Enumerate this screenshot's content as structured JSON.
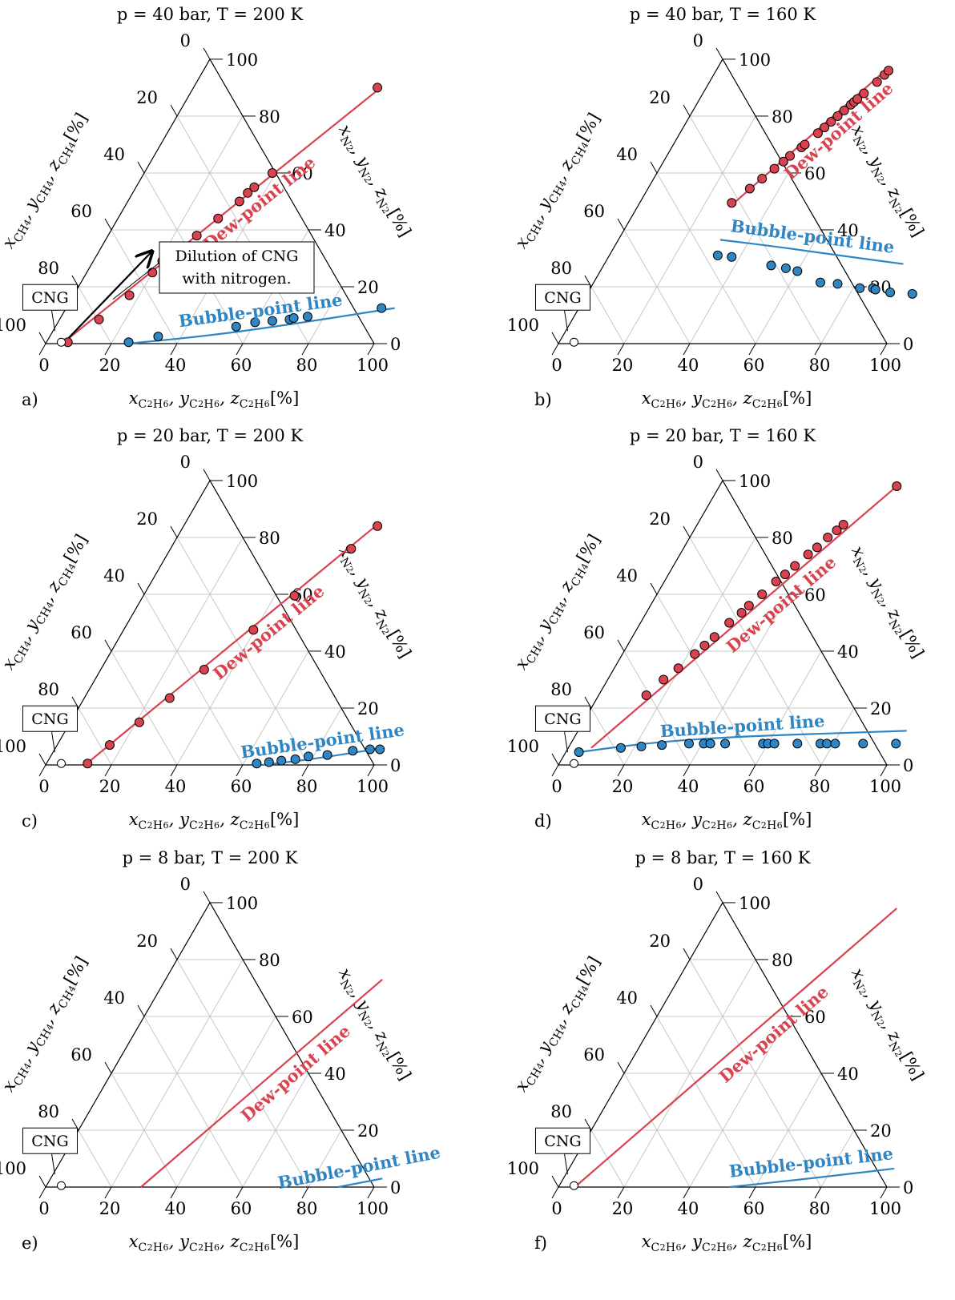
{
  "axis_labels": {
    "left": "x_CH4, y_CH4, z_CH4 [%]",
    "right": "x_N2, y_N2, z_N2 [%]",
    "bottom": "x_C2H6, y_C2H6, z_C2H6 [%]"
  },
  "ticks": [
    "0",
    "20",
    "40",
    "60",
    "80",
    "100"
  ],
  "cng_label": "CNG",
  "dew_label": "Dew-point line",
  "bubble_label": "Bubble-point line",
  "annotation_lines": [
    "Dilution of CNG",
    "with nitrogen."
  ],
  "colors": {
    "dew": "#d8434f",
    "bubble": "#2f86c3",
    "grid": "#c8c8c8"
  },
  "chart_data": [
    {
      "type": "scatter",
      "panel": "a)",
      "title": "p = 40 bar, T = 200 K",
      "cng_point": [
        4.5,
        0.5
      ],
      "dew_line": [
        [
          5,
          0
        ],
        [
          57,
          90
        ]
      ],
      "bubble_line": [
        [
          25,
          0
        ],
        [
          50,
          3
        ],
        [
          75,
          7.5
        ],
        [
          100,
          12.5
        ]
      ],
      "dew_points": [
        [
          6.5,
          0.5
        ],
        [
          12,
          8.5
        ],
        [
          17,
          17
        ],
        [
          20,
          25
        ],
        [
          21,
          29
        ],
        [
          27,
          38
        ],
        [
          30.5,
          44
        ],
        [
          34,
          50
        ],
        [
          35,
          53
        ],
        [
          36,
          55
        ],
        [
          39,
          60
        ],
        [
          56,
          90
        ]
      ],
      "bubble_points": [
        [
          25,
          0.5
        ],
        [
          33,
          2.5
        ],
        [
          55,
          6
        ],
        [
          60,
          7.5
        ],
        [
          65,
          8
        ],
        [
          70,
          8.5
        ],
        [
          71,
          9
        ],
        [
          75,
          9.5
        ],
        [
          96,
          12.5
        ]
      ],
      "annotation_arrow": [
        [
          6,
          2
        ],
        [
          16,
          32
        ]
      ]
    },
    {
      "type": "scatter",
      "panel": "b)",
      "title": "p = 40 bar, T = 160 K",
      "cng_point": [
        4.5,
        0.5
      ],
      "dew_line": [
        [
          28,
          48
        ],
        [
          52,
          97
        ]
      ],
      "bubble_line": [
        [
          31,
          36.5
        ],
        [
          50,
          34
        ],
        [
          70,
          31
        ],
        [
          91,
          28
        ]
      ],
      "dew_points": [
        [
          28,
          49.5
        ],
        [
          31,
          54.5
        ],
        [
          33,
          58
        ],
        [
          35,
          61.5
        ],
        [
          36.5,
          64
        ],
        [
          37.5,
          66
        ],
        [
          39.5,
          69
        ],
        [
          40,
          70
        ],
        [
          42,
          74
        ],
        [
          43,
          76
        ],
        [
          44,
          78
        ],
        [
          45,
          80
        ],
        [
          46,
          82
        ],
        [
          47,
          84
        ],
        [
          47.5,
          85
        ],
        [
          48,
          86
        ],
        [
          49,
          88
        ],
        [
          51,
          92
        ],
        [
          52,
          94.5
        ],
        [
          52.5,
          96
        ]
      ],
      "bubble_points": [
        [
          33,
          31
        ],
        [
          37.5,
          30.5
        ],
        [
          51,
          27.5
        ],
        [
          56,
          26.5
        ],
        [
          60,
          25.5
        ],
        [
          69,
          21.5
        ],
        [
          74.5,
          21
        ],
        [
          82,
          19.5
        ],
        [
          86,
          19.5
        ],
        [
          87,
          19
        ],
        [
          92,
          18
        ],
        [
          99,
          17.5
        ]
      ],
      "annotation_arrow": []
    },
    {
      "type": "scatter",
      "panel": "c)",
      "title": "p = 20 bar, T = 200 K",
      "cng_point": [
        4.5,
        0.5
      ],
      "dew_line": [
        [
          12,
          0
        ],
        [
          59,
          85
        ]
      ],
      "bubble_line": [
        [
          66,
          0
        ],
        [
          80,
          2
        ],
        [
          100,
          6
        ]
      ],
      "dew_points": [
        [
          12.5,
          0.5
        ],
        [
          16,
          7
        ],
        [
          21,
          15
        ],
        [
          26,
          23.5
        ],
        [
          31.5,
          33.5
        ],
        [
          39.5,
          47.5
        ],
        [
          46,
          59.5
        ],
        [
          55,
          76
        ],
        [
          59,
          84
        ]
      ],
      "bubble_points": [
        [
          64,
          0.5
        ],
        [
          67.5,
          1
        ],
        [
          71,
          1.5
        ],
        [
          75,
          2
        ],
        [
          78.5,
          3
        ],
        [
          84,
          3.5
        ],
        [
          91,
          5
        ],
        [
          96,
          5.5
        ],
        [
          99,
          5.5
        ]
      ],
      "annotation_arrow": []
    },
    {
      "type": "scatter",
      "panel": "d)",
      "title": "p = 20 bar, T = 160 K",
      "cng_point": [
        4.5,
        0.5
      ],
      "dew_line": [
        [
          7,
          6
        ],
        [
          54,
          98
        ]
      ],
      "bubble_line": [
        [
          4,
          4.5
        ],
        [
          25,
          8
        ],
        [
          50,
          10
        ],
        [
          75,
          11
        ],
        [
          100,
          12
        ]
      ],
      "dew_points": [
        [
          14.5,
          24.5
        ],
        [
          17,
          30
        ],
        [
          19.5,
          34
        ],
        [
          22,
          39
        ],
        [
          23.5,
          42
        ],
        [
          25,
          45
        ],
        [
          27,
          50
        ],
        [
          29,
          53.5
        ],
        [
          30,
          56
        ],
        [
          32,
          60
        ],
        [
          34,
          64.5
        ],
        [
          35.5,
          67
        ],
        [
          37,
          70
        ],
        [
          39,
          74
        ],
        [
          40.5,
          76.5
        ],
        [
          42,
          80
        ],
        [
          43.5,
          82.5
        ],
        [
          44.5,
          84.5
        ],
        [
          54,
          98
        ]
      ],
      "bubble_points": [
        [
          4,
          4.5
        ],
        [
          16,
          6
        ],
        [
          22,
          6.5
        ],
        [
          28,
          7
        ],
        [
          36,
          7.5
        ],
        [
          40.5,
          7.5
        ],
        [
          42.5,
          7.5
        ],
        [
          47,
          7.5
        ],
        [
          58.5,
          7.5
        ],
        [
          60,
          7.5
        ],
        [
          62,
          7.5
        ],
        [
          69,
          7.5
        ],
        [
          76,
          7.5
        ],
        [
          78,
          7.5
        ],
        [
          80.5,
          7.5
        ],
        [
          89,
          7.5
        ],
        [
          99,
          7.5
        ]
      ],
      "annotation_arrow": []
    },
    {
      "type": "line",
      "panel": "e)",
      "title": "p = 8 bar, T = 200 K",
      "cng_point": [
        4.5,
        0.5
      ],
      "dew_line": [
        [
          29,
          0
        ],
        [
          66,
          73
        ]
      ],
      "bubble_line": [
        [
          89,
          0
        ],
        [
          97,
          2
        ],
        [
          101,
          3
        ]
      ],
      "dew_points": [],
      "bubble_points": [],
      "annotation_arrow": []
    },
    {
      "type": "line",
      "panel": "f)",
      "title": "p = 8 bar, T = 160 K",
      "cng_point": [
        4.5,
        0.5
      ],
      "dew_line": [
        [
          5,
          0
        ],
        [
          54,
          98
        ]
      ],
      "bubble_line": [
        [
          52,
          0
        ],
        [
          75,
          3
        ],
        [
          99,
          6.5
        ]
      ],
      "dew_points": [],
      "bubble_points": [],
      "annotation_arrow": []
    }
  ]
}
